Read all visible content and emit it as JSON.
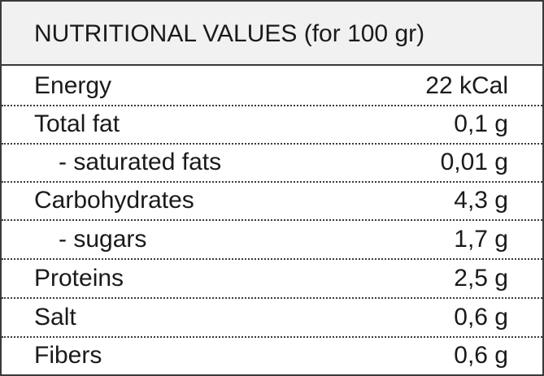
{
  "header": {
    "title": "NUTRITIONAL VALUES (for 100 gr)"
  },
  "table": {
    "rows": [
      [
        "Energy",
        "22 kCal"
      ],
      [
        "Total fat",
        "0,1 g"
      ],
      [
        "- saturated fats",
        "0,01 g"
      ],
      [
        "Carbohydrates",
        "4,3 g"
      ],
      [
        "- sugars",
        "1,7 g"
      ],
      [
        "Proteins",
        "2,5 g"
      ],
      [
        "Salt",
        "0,6 g"
      ],
      [
        "Fibers",
        "0,6 g"
      ]
    ]
  }
}
